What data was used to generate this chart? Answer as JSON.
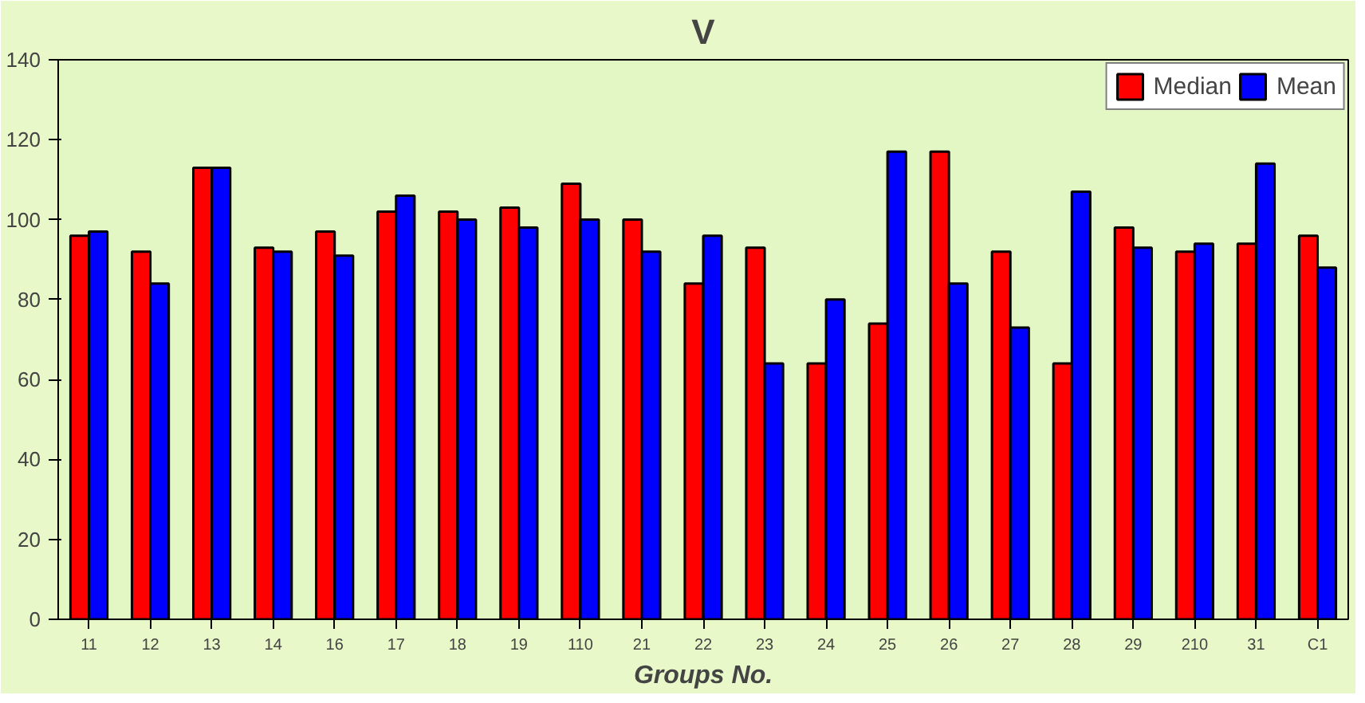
{
  "chart_data": {
    "type": "bar",
    "title": "V",
    "xlabel": "Groups No.",
    "categories": [
      "11",
      "12",
      "13",
      "14",
      "16",
      "17",
      "18",
      "19",
      "110",
      "21",
      "22",
      "23",
      "24",
      "25",
      "26",
      "27",
      "28",
      "29",
      "210",
      "31",
      "C1"
    ],
    "series": [
      {
        "name": "Median",
        "color": "#ff0000",
        "values": [
          96,
          92,
          113,
          93,
          97,
          102,
          102,
          103,
          109,
          100,
          84,
          93,
          64,
          74,
          117,
          92,
          64,
          98,
          92,
          94,
          96
        ]
      },
      {
        "name": "Mean",
        "color": "#0000ff",
        "values": [
          97,
          84,
          113,
          92,
          91,
          106,
          100,
          98,
          100,
          92,
          96,
          64,
          80,
          117,
          84,
          73,
          107,
          93,
          94,
          114,
          88
        ]
      }
    ],
    "ylim": [
      0,
      140
    ],
    "yticks": [
      0,
      20,
      40,
      60,
      80,
      100,
      120,
      140
    ],
    "grid": false,
    "legend": "top right"
  }
}
